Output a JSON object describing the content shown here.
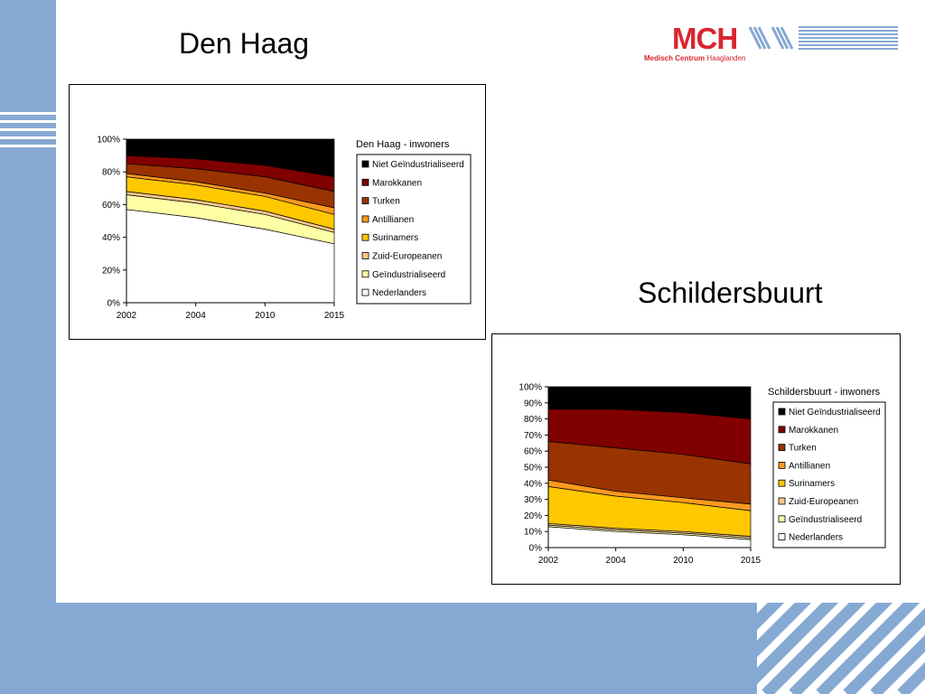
{
  "slide": {
    "title_left": "Den Haag",
    "title_right": "Schildersbuurt"
  },
  "logo": {
    "mark": "MCH",
    "name": "Medisch Centrum",
    "region": "Haaglanden",
    "brand_color": "#d8262e"
  },
  "theme": {
    "accent": "#86a9d3"
  },
  "chart_data": [
    {
      "type": "area",
      "stacked": true,
      "percent": true,
      "legend_title": "Den Haag - inwoners",
      "legend_position": "right",
      "categories": [
        "2002",
        "2004",
        "2010",
        "2015"
      ],
      "y_ticks": [
        "0%",
        "20%",
        "40%",
        "60%",
        "80%",
        "100%"
      ],
      "ylim": [
        0,
        100
      ],
      "series": [
        {
          "name": "Nederlanders",
          "color": "#ffffff",
          "values": [
            57,
            52,
            45,
            36
          ]
        },
        {
          "name": "Geïndustrialiseerd",
          "color": "#ffffa6",
          "values": [
            9,
            9,
            9,
            7
          ]
        },
        {
          "name": "Zuid-Europeanen",
          "color": "#ffc88c",
          "values": [
            2,
            2,
            2,
            2
          ]
        },
        {
          "name": "Surinamers",
          "color": "#ffc800",
          "values": [
            9,
            9,
            9,
            9
          ]
        },
        {
          "name": "Antillianen",
          "color": "#ff9a1e",
          "values": [
            2,
            2,
            2,
            4
          ]
        },
        {
          "name": "Turken",
          "color": "#993300",
          "values": [
            6,
            8,
            10,
            10
          ]
        },
        {
          "name": "Marokkanen",
          "color": "#800000",
          "values": [
            5,
            6,
            7,
            9
          ]
        },
        {
          "name": "Niet Geïndustrialiseerd",
          "color": "#000000",
          "values": [
            10,
            12,
            16,
            23
          ]
        }
      ],
      "legend_order": [
        "Niet Geïndustrialiseerd",
        "Marokkanen",
        "Turken",
        "Antillianen",
        "Surinamers",
        "Zuid-Europeanen",
        "Geïndustrialiseerd",
        "Nederlanders"
      ]
    },
    {
      "type": "area",
      "stacked": true,
      "percent": true,
      "legend_title": "Schildersbuurt - inwoners",
      "legend_position": "right",
      "categories": [
        "2002",
        "2004",
        "2010",
        "2015"
      ],
      "y_ticks": [
        "0%",
        "10%",
        "20%",
        "30%",
        "40%",
        "50%",
        "60%",
        "70%",
        "80%",
        "90%",
        "100%"
      ],
      "ylim": [
        0,
        100
      ],
      "series": [
        {
          "name": "Nederlanders",
          "color": "#ffffff",
          "values": [
            13,
            10,
            8,
            5
          ]
        },
        {
          "name": "Geïndustrialiseerd",
          "color": "#ffffa6",
          "values": [
            1,
            1,
            1,
            1
          ]
        },
        {
          "name": "Zuid-Europeanen",
          "color": "#ffc88c",
          "values": [
            1,
            1,
            1,
            1
          ]
        },
        {
          "name": "Surinamers",
          "color": "#ffc800",
          "values": [
            23,
            20,
            18,
            16
          ]
        },
        {
          "name": "Antillianen",
          "color": "#ff9a1e",
          "values": [
            4,
            3,
            3,
            4
          ]
        },
        {
          "name": "Turken",
          "color": "#993300",
          "values": [
            24,
            27,
            27,
            25
          ]
        },
        {
          "name": "Marokkanen",
          "color": "#800000",
          "values": [
            20,
            24,
            26,
            28
          ]
        },
        {
          "name": "Niet Geïndustrialiseerd",
          "color": "#000000",
          "values": [
            14,
            14,
            16,
            20
          ]
        }
      ],
      "legend_order": [
        "Niet Geïndustrialiseerd",
        "Marokkanen",
        "Turken",
        "Antillianen",
        "Surinamers",
        "Zuid-Europeanen",
        "Geïndustrialiseerd",
        "Nederlanders"
      ]
    }
  ]
}
